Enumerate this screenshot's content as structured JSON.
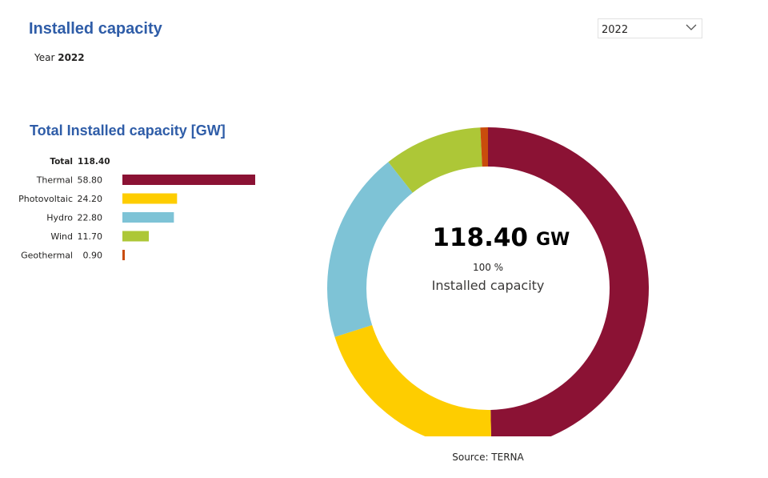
{
  "header": {
    "title": "Installed capacity",
    "year_label": "Year",
    "year_value": "2022"
  },
  "year_select": {
    "selected": "2022",
    "icon": "chevron-down-icon"
  },
  "colors": {
    "title": "#2f5da8",
    "Thermal": "#8b1234",
    "Photovoltaic": "#fecd00",
    "Hydro": "#7ec3d6",
    "Wind": "#adc737",
    "Geothermal": "#c94c0c"
  },
  "chart_data": [
    {
      "type": "bar",
      "orientation": "horizontal",
      "title": "Total Installed capacity [GW]",
      "total_label": "Total",
      "total_value": "118.40",
      "categories": [
        "Thermal",
        "Photovoltaic",
        "Hydro",
        "Wind",
        "Geothermal"
      ],
      "values": [
        58.8,
        24.2,
        22.8,
        11.7,
        0.9
      ],
      "value_labels": [
        "58.80",
        "24.20",
        "22.80",
        "11.70",
        "0.90"
      ],
      "xlim": [
        0,
        58.8
      ]
    },
    {
      "type": "pie",
      "donut": true,
      "categories": [
        "Thermal",
        "Photovoltaic",
        "Hydro",
        "Wind",
        "Geothermal"
      ],
      "values": [
        58.8,
        24.2,
        22.8,
        11.7,
        0.9
      ],
      "center_value": "118.40",
      "center_unit": "GW",
      "center_percent": "100 %",
      "center_label": "Installed capacity"
    }
  ],
  "footer": {
    "source": "Source: TERNA"
  }
}
